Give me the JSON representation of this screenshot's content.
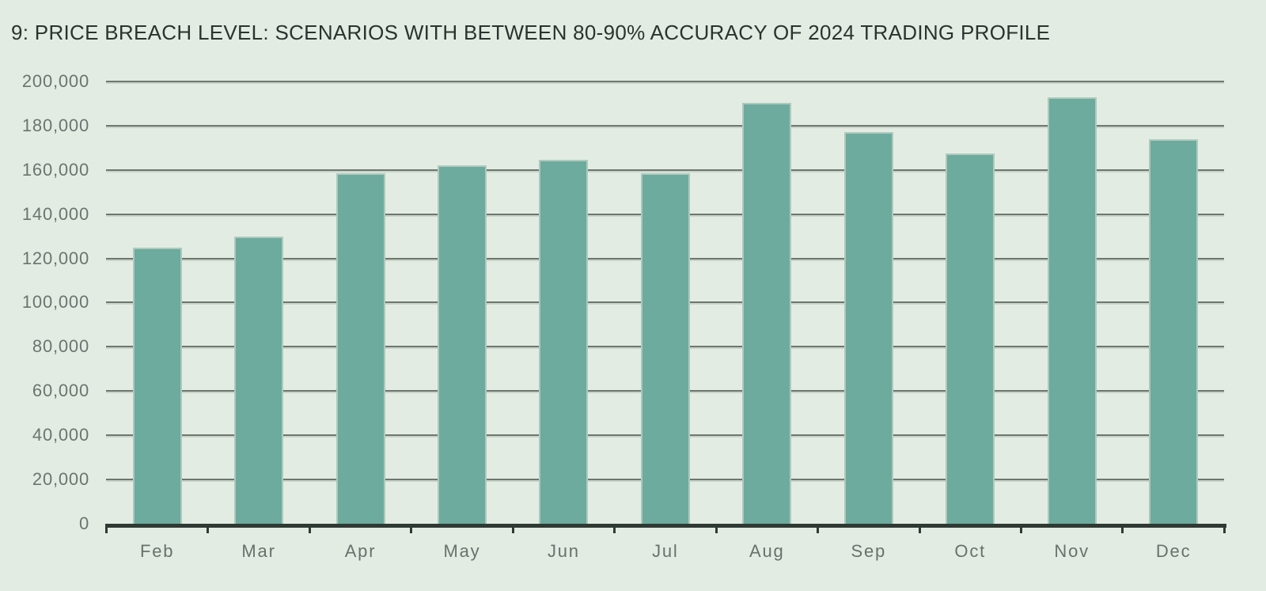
{
  "header": {
    "title": "9: PRICE BREACH LEVEL: SCENARIOS WITH BETWEEN 80-90%  ACCURACY OF 2024 TRADING PROFILE"
  },
  "chart_data": {
    "type": "bar",
    "title": "9: PRICE BREACH LEVEL: SCENARIOS WITH BETWEEN 80-90%  ACCURACY OF 2024 TRADING PROFILE",
    "categories": [
      "Feb",
      "Mar",
      "Apr",
      "May",
      "Jun",
      "Jul",
      "Aug",
      "Sep",
      "Oct",
      "Nov",
      "Dec"
    ],
    "values": [
      125000,
      130000,
      158500,
      162000,
      164500,
      158500,
      190500,
      177000,
      167500,
      193000,
      174000
    ],
    "xlabel": "",
    "ylabel": "",
    "ylim": [
      0,
      200000
    ],
    "ytick_step": 20000,
    "yticks": [
      {
        "value": 0,
        "label": "0"
      },
      {
        "value": 20000,
        "label": "20,000"
      },
      {
        "value": 40000,
        "label": "40,000"
      },
      {
        "value": 60000,
        "label": "60,000"
      },
      {
        "value": 80000,
        "label": "80,000"
      },
      {
        "value": 100000,
        "label": "100,000"
      },
      {
        "value": 120000,
        "label": "120,000"
      },
      {
        "value": 140000,
        "label": "140,000"
      },
      {
        "value": 160000,
        "label": "160,000"
      },
      {
        "value": 180000,
        "label": "180,000"
      },
      {
        "value": 200000,
        "label": "200,000"
      }
    ],
    "grid": "horizontal",
    "legend": "none",
    "colors": {
      "background": "#e3ece3",
      "bar_fill": "#6cab9e",
      "bar_edge": "#aec9bc",
      "gridline": "#4d574f",
      "gridline_shadow": "#c2cec2",
      "axis_line": "#2f3a34",
      "tick_label": "#6b746e",
      "title_text": "#2a342e"
    }
  }
}
